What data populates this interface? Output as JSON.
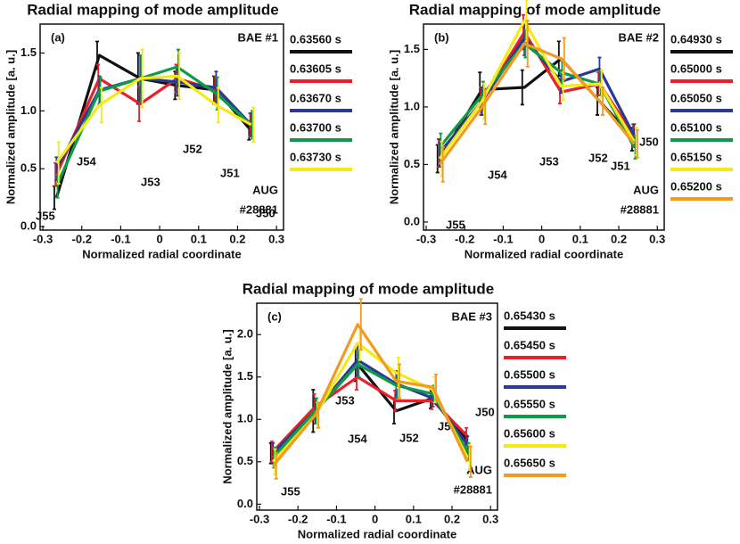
{
  "chart_data": [
    {
      "type": "line",
      "title": "Radial mapping of mode amplitude",
      "xlabel": "Normalized radial coordinate",
      "ylabel": "Normalized amplitude [a. u.]",
      "x": [
        -0.265,
        -0.155,
        -0.05,
        0.045,
        0.145,
        0.235
      ],
      "annotations": {
        "panel": "(a)",
        "mode": "BAE #1",
        "device": "AUG",
        "shot": "#28881",
        "probes": [
          "J55",
          "J54",
          "J53",
          "J52",
          "J51",
          "J50"
        ]
      },
      "series": [
        {
          "name": "0.63560 s",
          "color": "#111111",
          "values": [
            0.25,
            1.48,
            1.28,
            1.22,
            1.18,
            0.83
          ],
          "errors": [
            0.1,
            0.12,
            0.22,
            0.12,
            0.12,
            0.08
          ]
        },
        {
          "name": "0.63605 s",
          "color": "#e8202a",
          "values": [
            0.45,
            1.28,
            1.06,
            1.28,
            1.18,
            0.88
          ],
          "errors": [
            0.1,
            0.12,
            0.15,
            0.12,
            0.12,
            0.1
          ]
        },
        {
          "name": "0.63670 s",
          "color": "#2a3a94",
          "values": [
            0.5,
            1.18,
            1.28,
            1.25,
            1.2,
            0.88
          ],
          "errors": [
            0.1,
            0.12,
            0.2,
            0.12,
            0.14,
            0.1
          ]
        },
        {
          "name": "0.63700 s",
          "color": "#0f9a4a",
          "values": [
            0.35,
            1.17,
            1.28,
            1.38,
            1.15,
            0.88
          ],
          "errors": [
            0.1,
            0.12,
            0.2,
            0.15,
            0.14,
            0.12
          ]
        },
        {
          "name": "0.63730 s",
          "color": "#f5ea14",
          "values": [
            0.55,
            1.05,
            1.28,
            1.3,
            1.05,
            0.88
          ],
          "errors": [
            0.18,
            0.15,
            0.25,
            0.2,
            0.15,
            0.15
          ]
        }
      ],
      "xlim": [
        -0.307,
        0.318
      ],
      "ylim": [
        -0.03,
        1.75
      ],
      "xticks": [
        -0.3,
        -0.2,
        -0.1,
        0,
        0.1,
        0.2,
        0.3
      ],
      "yticks": [
        {
          "value": 0,
          "label": "0.0"
        },
        0.5,
        {
          "value": 1,
          "label": "1.0"
        },
        1.5
      ]
    },
    {
      "type": "line",
      "title": "Radial mapping of mode amplitude",
      "xlabel": "Normalized radial coordinate",
      "ylabel": "Normalized amplitude [a. u.]",
      "x": [
        -0.265,
        -0.155,
        -0.045,
        0.05,
        0.15,
        0.24
      ],
      "annotations": {
        "panel": "(b)",
        "mode": "BAE #2",
        "device": "AUG",
        "shot": "#28881",
        "probes": [
          "J55",
          "J54",
          "J53",
          "J52",
          "J51",
          "J50"
        ]
      },
      "series": [
        {
          "name": "0.64930 s",
          "color": "#111111",
          "values": [
            0.55,
            1.15,
            1.17,
            1.42,
            1.05,
            0.72
          ],
          "errors": [
            0.12,
            0.15,
            0.15,
            0.15,
            0.12,
            0.1
          ]
        },
        {
          "name": "0.65000 s",
          "color": "#e8202a",
          "values": [
            0.6,
            1.05,
            1.65,
            1.13,
            1.2,
            0.75
          ],
          "errors": [
            0.12,
            0.12,
            0.15,
            0.1,
            0.1,
            0.1
          ]
        },
        {
          "name": "0.65050 s",
          "color": "#2a3a94",
          "values": [
            0.6,
            1.05,
            1.6,
            1.22,
            1.33,
            0.75
          ],
          "errors": [
            0.12,
            0.12,
            0.15,
            0.1,
            0.1,
            0.1
          ]
        },
        {
          "name": "0.65100 s",
          "color": "#0f9a4a",
          "values": [
            0.65,
            1.1,
            1.55,
            1.3,
            1.2,
            0.65
          ],
          "errors": [
            0.12,
            0.12,
            0.12,
            0.1,
            0.1,
            0.1
          ]
        },
        {
          "name": "0.65150 s",
          "color": "#f5ea14",
          "values": [
            0.55,
            1.05,
            1.75,
            1.18,
            1.2,
            0.7
          ],
          "errors": [
            0.15,
            0.15,
            0.18,
            0.12,
            0.12,
            0.12
          ]
        },
        {
          "name": "0.65200 s",
          "color": "#f39a20",
          "values": [
            0.5,
            1.0,
            1.55,
            1.42,
            1.05,
            0.68
          ],
          "errors": [
            0.15,
            0.15,
            0.2,
            0.18,
            0.12,
            0.12
          ]
        }
      ],
      "xlim": [
        -0.307,
        0.318
      ],
      "ylim": [
        -0.07,
        1.72
      ],
      "xticks": [
        -0.3,
        -0.2,
        -0.1,
        0,
        0.1,
        0.2,
        0.3
      ],
      "yticks": [
        {
          "value": 0,
          "label": "0.0"
        },
        0.5,
        {
          "value": 1,
          "label": "1.0"
        },
        1.5
      ]
    },
    {
      "type": "line",
      "title": "Radial mapping of mode amplitude",
      "xlabel": "Normalized radial coordinate",
      "ylabel": "Normalized amplitude [a. u.]",
      "x": [
        -0.265,
        -0.155,
        -0.045,
        0.055,
        0.15,
        0.24
      ],
      "annotations": {
        "panel": "(c)",
        "mode": "BAE #3",
        "device": "AUG",
        "shot": "#28881",
        "probes": [
          "J55",
          "J54",
          "J53",
          "J52",
          "J51",
          "J50"
        ]
      },
      "series": [
        {
          "name": "0.65430 s",
          "color": "#111111",
          "values": [
            0.6,
            1.1,
            1.65,
            1.1,
            1.25,
            0.75
          ],
          "errors": [
            0.12,
            0.25,
            0.2,
            0.15,
            0.12,
            0.1
          ]
        },
        {
          "name": "0.65450 s",
          "color": "#e8202a",
          "values": [
            0.62,
            1.15,
            1.5,
            1.22,
            1.22,
            0.8
          ],
          "errors": [
            0.12,
            0.15,
            0.15,
            0.12,
            0.1,
            0.1
          ]
        },
        {
          "name": "0.65500 s",
          "color": "#2a3a94",
          "values": [
            0.6,
            1.1,
            1.7,
            1.42,
            1.25,
            0.7
          ],
          "errors": [
            0.12,
            0.15,
            0.18,
            0.15,
            0.1,
            0.1
          ]
        },
        {
          "name": "0.65550 s",
          "color": "#0f9a4a",
          "values": [
            0.55,
            1.1,
            1.65,
            1.4,
            1.3,
            0.62
          ],
          "errors": [
            0.12,
            0.15,
            0.15,
            0.15,
            0.1,
            0.1
          ]
        },
        {
          "name": "0.65600 s",
          "color": "#f5ea14",
          "values": [
            0.5,
            1.05,
            1.9,
            1.55,
            1.35,
            0.55
          ],
          "errors": [
            0.15,
            0.15,
            0.2,
            0.18,
            0.15,
            0.15
          ]
        },
        {
          "name": "0.65650 s",
          "color": "#f39a20",
          "values": [
            0.45,
            1.05,
            2.12,
            1.45,
            1.38,
            0.5
          ],
          "errors": [
            0.15,
            0.15,
            0.3,
            0.2,
            0.15,
            0.18
          ]
        }
      ],
      "xlim": [
        -0.307,
        0.318
      ],
      "ylim": [
        -0.07,
        2.37
      ],
      "xticks": [
        -0.3,
        -0.2,
        -0.1,
        0,
        0.1,
        0.2,
        0.3
      ],
      "yticks": [
        {
          "value": 0,
          "label": "0.0"
        },
        0.5,
        {
          "value": 1,
          "label": "1.0"
        },
        1.5,
        {
          "value": 2,
          "label": "2.0"
        }
      ]
    }
  ]
}
